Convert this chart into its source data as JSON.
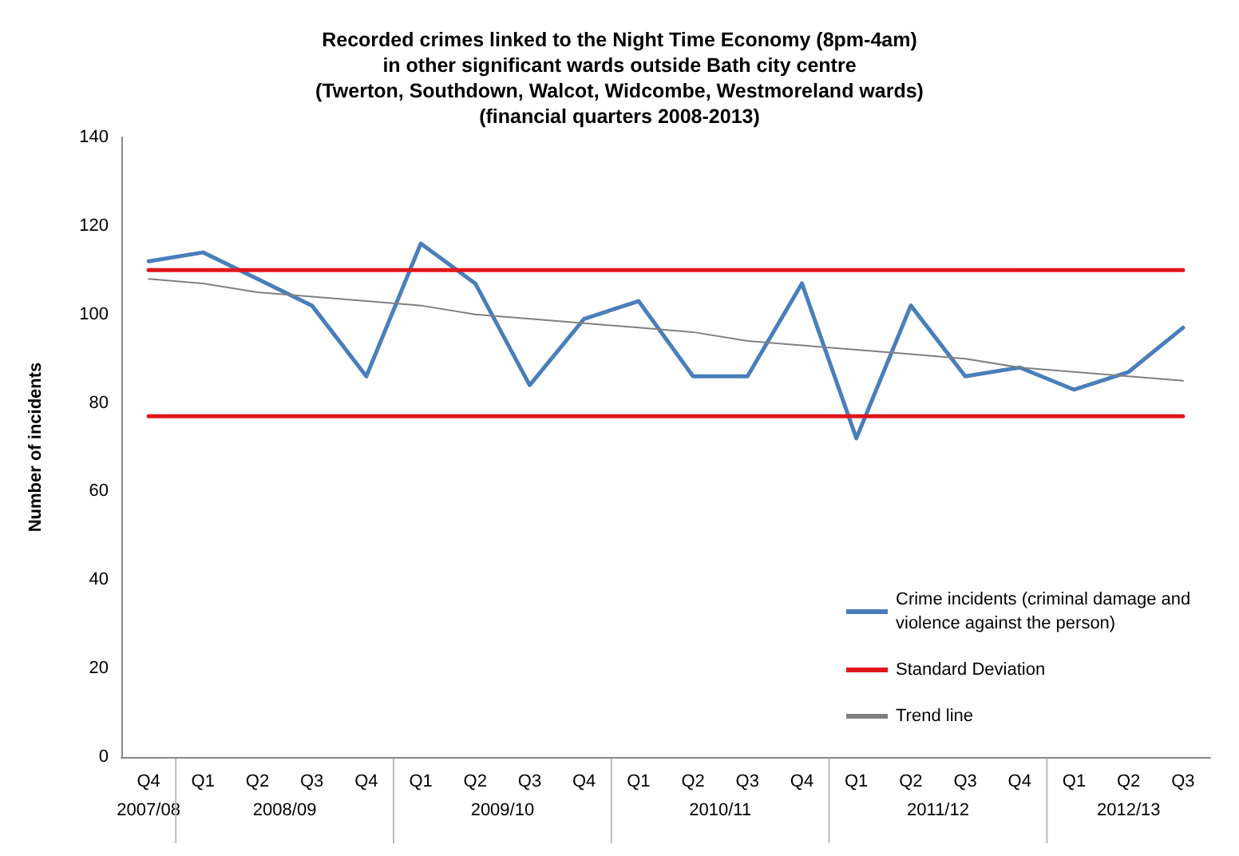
{
  "chart_data": {
    "type": "line",
    "title": "Recorded crimes linked to the Night Time Economy (8pm-4am)\nin other significant wards outside Bath city centre\n(Twerton, Southdown, Walcot, Widcombe, Westmoreland wards)\n(financial quarters 2008-2013)",
    "ylabel": "Number of incidents",
    "categories": [
      "Q4",
      "Q1",
      "Q2",
      "Q3",
      "Q4",
      "Q1",
      "Q2",
      "Q3",
      "Q4",
      "Q1",
      "Q2",
      "Q3",
      "Q4",
      "Q1",
      "Q2",
      "Q3",
      "Q4",
      "Q1",
      "Q2",
      "Q3"
    ],
    "series": [
      {
        "name": "Crime incidents (criminal damage and violence against the person)",
        "color": "#4a7ebb",
        "values": [
          112,
          114,
          108,
          102,
          86,
          116,
          107,
          84,
          99,
          103,
          86,
          86,
          107,
          72,
          102,
          86,
          88,
          83,
          87,
          97
        ]
      },
      {
        "name": "Standard Deviation",
        "color": "#e0161b",
        "values": [
          110,
          110,
          110,
          110,
          110,
          110,
          110,
          110,
          110,
          110,
          110,
          110,
          110,
          110,
          110,
          110,
          110,
          110,
          110,
          110
        ]
      },
      {
        "color": "#e0161b",
        "values": [
          77,
          77,
          77,
          77,
          77,
          77,
          77,
          77,
          77,
          77,
          77,
          77,
          77,
          77,
          77,
          77,
          77,
          77,
          77,
          77
        ]
      },
      {
        "name": "Trend line",
        "color": "#808080",
        "values": [
          108,
          107,
          105,
          104,
          103,
          102,
          100,
          99,
          98,
          97,
          96,
          94,
          93,
          92,
          91,
          90,
          88,
          87,
          86,
          85
        ]
      }
    ],
    "annotations": [
      "2007/08",
      "2008/09",
      "2009/10",
      "2010/11",
      "2011/12",
      "2012/13"
    ],
    "ylim": [
      0,
      140
    ],
    "yticks": [
      0,
      20,
      40,
      60,
      80,
      100,
      120,
      140
    ],
    "grid": false,
    "legend": "right",
    "marker": "none",
    "line_style": "solid"
  }
}
